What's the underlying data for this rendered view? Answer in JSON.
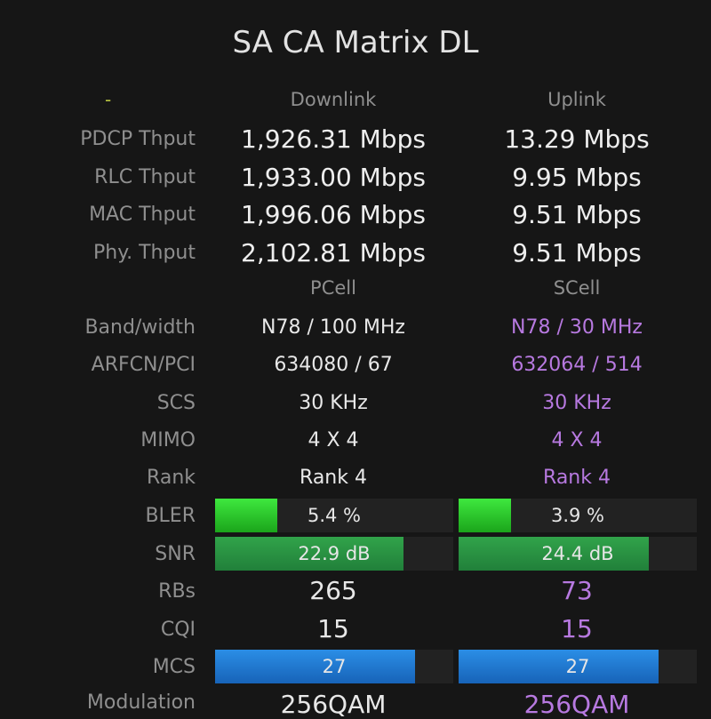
{
  "title": "SA CA Matrix DL",
  "throughput": {
    "corner": "-",
    "headers": [
      "Downlink",
      "Uplink"
    ],
    "rows": [
      {
        "label": "PDCP Thput",
        "dl": "1,926.31 Mbps",
        "ul": "13.29 Mbps"
      },
      {
        "label": "RLC Thput",
        "dl": "1,933.00 Mbps",
        "ul": "9.95 Mbps"
      },
      {
        "label": "MAC Thput",
        "dl": "1,996.06 Mbps",
        "ul": "9.51 Mbps"
      },
      {
        "label": "Phy. Thput",
        "dl": "2,102.81 Mbps",
        "ul": "9.51 Mbps"
      }
    ]
  },
  "cells": {
    "headers": [
      "PCell",
      "SCell"
    ],
    "rows": [
      {
        "label": "Band/width",
        "pcell": "N78 / 100 MHz",
        "scell": "N78 / 30 MHz"
      },
      {
        "label": "ARFCN/PCI",
        "pcell": "634080 / 67",
        "scell": "632064 / 514"
      },
      {
        "label": "SCS",
        "pcell": "30 KHz",
        "scell": "30 KHz"
      },
      {
        "label": "MIMO",
        "pcell": "4 X 4",
        "scell": "4 X 4"
      },
      {
        "label": "Rank",
        "pcell": "Rank 4",
        "scell": "Rank 4"
      }
    ],
    "bler": {
      "label": "BLER",
      "pcell": "5.4 %",
      "scell": "3.9 %",
      "pcell_fill": 0.26,
      "scell_fill": 0.22
    },
    "snr": {
      "label": "SNR",
      "pcell": "22.9 dB",
      "scell": "24.4 dB",
      "pcell_fill": 0.79,
      "scell_fill": 0.8
    },
    "rbs": {
      "label": "RBs",
      "pcell": "265",
      "scell": "73"
    },
    "cqi": {
      "label": "CQI",
      "pcell": "15",
      "scell": "15"
    },
    "mcs": {
      "label": "MCS",
      "pcell": "27",
      "scell": "27",
      "pcell_fill": 0.84,
      "scell_fill": 0.84
    },
    "modulation": {
      "label": "Modulation",
      "pcell": "256QAM",
      "scell": "256QAM"
    }
  },
  "colors": {
    "background": "#161616",
    "scell_text": "#b779e0",
    "bler_bar": "#2fd82f",
    "snr_bar": "#2a9443",
    "mcs_bar": "#2279d3"
  }
}
